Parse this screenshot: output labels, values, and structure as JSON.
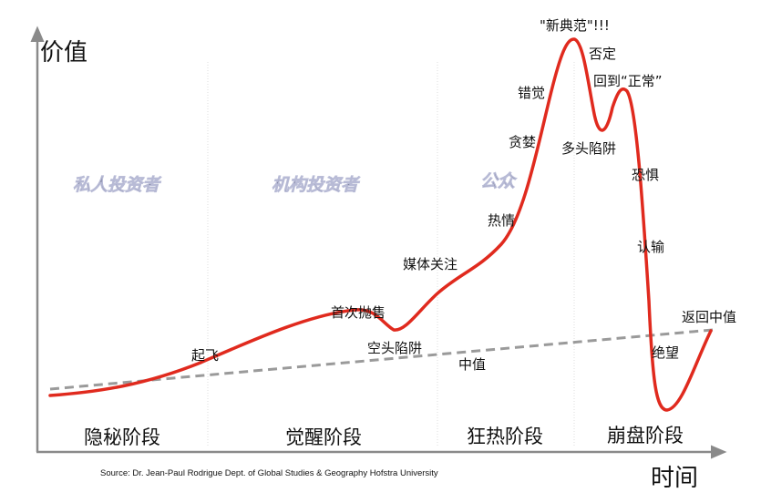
{
  "axes": {
    "y_label": "价值",
    "x_label": "时间"
  },
  "groups": [
    "私人投资者",
    "机构投资者",
    "公众"
  ],
  "stages": [
    "隐秘阶段",
    "觉醒阶段",
    "狂热阶段",
    "崩盘阶段"
  ],
  "annotations": {
    "new_paradigm": "\"新典范\"!!!",
    "denial": "否定",
    "return_normal": "回到“正常”",
    "delusion": "错觉",
    "greed": "贪婪",
    "bull_trap": "多头陷阱",
    "fear": "恐惧",
    "enthusiasm": "热情",
    "capitulation": "认输",
    "media_attention": "媒体关注",
    "first_sell_off": "首次抛售",
    "return_to_mean": "返回中值",
    "bear_trap": "空头陷阱",
    "take_off": "起飞",
    "despair": "绝望",
    "mean": "中值"
  },
  "source": "Source: Dr. Jean-Paul Rodrigue Dept. of Global Studies & Geography Hofstra University",
  "colors": {
    "curve": "#e02a1e",
    "mean_line": "#9a9a9a",
    "axis": "#8a8a8a",
    "group_text": "#7a7d98"
  }
}
